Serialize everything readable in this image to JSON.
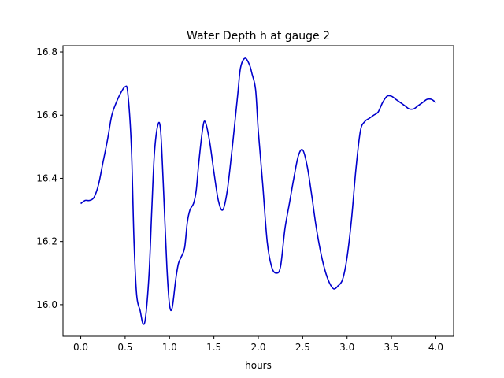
{
  "chart_data": {
    "type": "line",
    "title": "Water Depth h at gauge 2",
    "xlabel": "hours",
    "ylabel": "",
    "xlim": [
      -0.2,
      4.2
    ],
    "ylim": [
      15.9,
      16.82
    ],
    "xticks": [
      0.0,
      0.5,
      1.0,
      1.5,
      2.0,
      2.5,
      3.0,
      3.5,
      4.0
    ],
    "xtick_labels": [
      "0.0",
      "0.5",
      "1.0",
      "1.5",
      "2.0",
      "2.5",
      "3.0",
      "3.5",
      "4.0"
    ],
    "yticks": [
      16.0,
      16.2,
      16.4,
      16.6,
      16.8
    ],
    "ytick_labels": [
      "16.0",
      "16.2",
      "16.4",
      "16.6",
      "16.8"
    ],
    "grid": false,
    "series": [
      {
        "color": "#0000cc",
        "x": [
          0.0,
          0.05,
          0.1,
          0.15,
          0.2,
          0.25,
          0.3,
          0.35,
          0.4,
          0.45,
          0.5,
          0.53,
          0.57,
          0.6,
          0.63,
          0.67,
          0.7,
          0.73,
          0.77,
          0.8,
          0.83,
          0.87,
          0.9,
          0.93,
          0.97,
          1.0,
          1.03,
          1.07,
          1.1,
          1.13,
          1.17,
          1.2,
          1.23,
          1.27,
          1.3,
          1.33,
          1.37,
          1.4,
          1.45,
          1.5,
          1.55,
          1.6,
          1.65,
          1.7,
          1.73,
          1.77,
          1.8,
          1.85,
          1.9,
          1.93,
          1.97,
          2.0,
          2.05,
          2.1,
          2.15,
          2.2,
          2.25,
          2.3,
          2.35,
          2.4,
          2.45,
          2.5,
          2.55,
          2.6,
          2.65,
          2.7,
          2.75,
          2.8,
          2.85,
          2.9,
          2.95,
          3.0,
          3.05,
          3.1,
          3.15,
          3.2,
          3.25,
          3.3,
          3.35,
          3.4,
          3.45,
          3.5,
          3.55,
          3.6,
          3.65,
          3.7,
          3.75,
          3.8,
          3.85,
          3.9,
          3.95,
          4.0
        ],
        "y": [
          16.32,
          16.33,
          16.33,
          16.34,
          16.38,
          16.45,
          16.52,
          16.6,
          16.64,
          16.67,
          16.69,
          16.67,
          16.5,
          16.2,
          16.03,
          15.98,
          15.94,
          15.96,
          16.1,
          16.3,
          16.48,
          16.57,
          16.55,
          16.38,
          16.12,
          16.0,
          15.99,
          16.08,
          16.13,
          16.15,
          16.18,
          16.26,
          16.3,
          16.32,
          16.36,
          16.45,
          16.55,
          16.58,
          16.52,
          16.42,
          16.33,
          16.3,
          16.36,
          16.48,
          16.56,
          16.67,
          16.75,
          16.78,
          16.76,
          16.73,
          16.68,
          16.55,
          16.38,
          16.2,
          16.12,
          16.1,
          16.12,
          16.24,
          16.32,
          16.4,
          16.47,
          16.49,
          16.44,
          16.35,
          16.25,
          16.17,
          16.11,
          16.07,
          16.05,
          16.06,
          16.08,
          16.15,
          16.27,
          16.43,
          16.55,
          16.58,
          16.59,
          16.6,
          16.61,
          16.64,
          16.66,
          16.66,
          16.65,
          16.64,
          16.63,
          16.62,
          16.62,
          16.63,
          16.64,
          16.65,
          16.65,
          16.64
        ]
      }
    ]
  }
}
